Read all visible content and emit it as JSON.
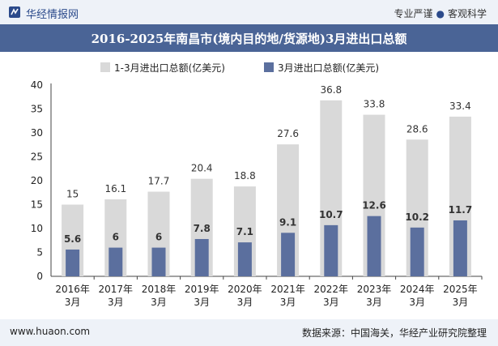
{
  "header": {
    "site_name": "华经情报网",
    "tagline_left": "专业严谨",
    "tagline_right": "客观科学"
  },
  "title": "2016-2025年南昌市(境内目的地/货源地)3月进出口总额",
  "footer": {
    "url": "www.huaon.com",
    "source": "数据来源：中国海关，华经产业研究院整理"
  },
  "colors": {
    "series_total": "#d9d9d9",
    "series_march": "#5b6f9e",
    "title_bar": "#4a6496",
    "footer_bg": "#eef2f8"
  },
  "chart_data": {
    "type": "bar",
    "categories": [
      "2016年\n3月",
      "2017年\n3月",
      "2018年\n3月",
      "2019年\n3月",
      "2020年\n3月",
      "2021年\n3月",
      "2022年\n3月",
      "2023年\n3月",
      "2024年\n3月",
      "2025年\n3月"
    ],
    "series": [
      {
        "name": "1-3月进出口总额(亿美元)",
        "values": [
          15,
          16.1,
          17.7,
          20.4,
          18.8,
          27.6,
          36.8,
          33.8,
          28.6,
          33.4
        ]
      },
      {
        "name": "3月进出口总额(亿美元)",
        "values": [
          5.6,
          6,
          6,
          7.8,
          7.1,
          9.1,
          10.7,
          12.6,
          10.2,
          11.7
        ]
      }
    ],
    "ylim": [
      0,
      40
    ],
    "yticks": [
      0,
      5,
      10,
      15,
      20,
      25,
      30,
      35,
      40
    ],
    "legend_position": "top",
    "grid": false
  }
}
